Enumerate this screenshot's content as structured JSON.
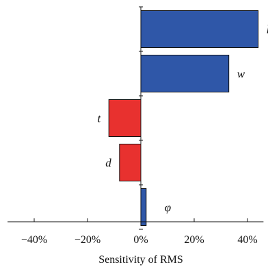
{
  "chart_data": {
    "type": "bar",
    "orientation": "horizontal",
    "xlabel": "Sensitivity of RMS",
    "ylabel": "",
    "title": "",
    "xlim": [
      -50,
      46
    ],
    "x_tick_values": [
      -40,
      -20,
      0,
      20,
      40
    ],
    "x_tick_labels": [
      "−40%",
      "−20%",
      "0%",
      "20%",
      "40%"
    ],
    "grid": false,
    "legend": "none",
    "bars": [
      {
        "label": "l",
        "value": 44,
        "color": "#2f57a8"
      },
      {
        "label": "w",
        "value": 33,
        "color": "#2f57a8"
      },
      {
        "label": "t",
        "value": -12,
        "color": "#e8312f"
      },
      {
        "label": "d",
        "value": -8,
        "color": "#e8312f"
      },
      {
        "label": "φ",
        "value": 2,
        "color": "#2f57a8"
      }
    ]
  }
}
